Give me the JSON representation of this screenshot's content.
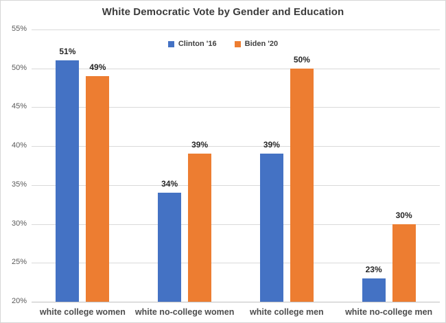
{
  "title": "White Democratic Vote by Gender and Education",
  "colors": {
    "clinton_blue": "#4472C4",
    "biden_orange": "#ED7D31",
    "gridline": "#d9d9d9",
    "axis_line": "#bfbfbf",
    "tick_text": "#595959",
    "label_text": "#262626",
    "title_text": "#3b3b3b"
  },
  "chart_data": {
    "type": "bar",
    "title": "White Democratic Vote by Gender and Education",
    "categories": [
      "white college women",
      "white no-college women",
      "white college men",
      "white no-college men"
    ],
    "series": [
      {
        "name": "Clinton '16",
        "color": "#4472C4",
        "values": [
          51,
          34,
          39,
          23
        ]
      },
      {
        "name": "Biden '20",
        "color": "#ED7D31",
        "values": [
          49,
          39,
          50,
          30
        ]
      }
    ],
    "data_labels": [
      [
        "51%",
        "34%",
        "39%",
        "23%"
      ],
      [
        "49%",
        "39%",
        "50%",
        "30%"
      ]
    ],
    "xlabel": "",
    "ylabel": "",
    "ylim": [
      20,
      55
    ],
    "ytick_step": 5,
    "ytick_labels": [
      "20%",
      "25%",
      "30%",
      "35%",
      "40%",
      "45%",
      "50%",
      "55%"
    ],
    "grid": true,
    "legend_position": "top-center-inside"
  }
}
